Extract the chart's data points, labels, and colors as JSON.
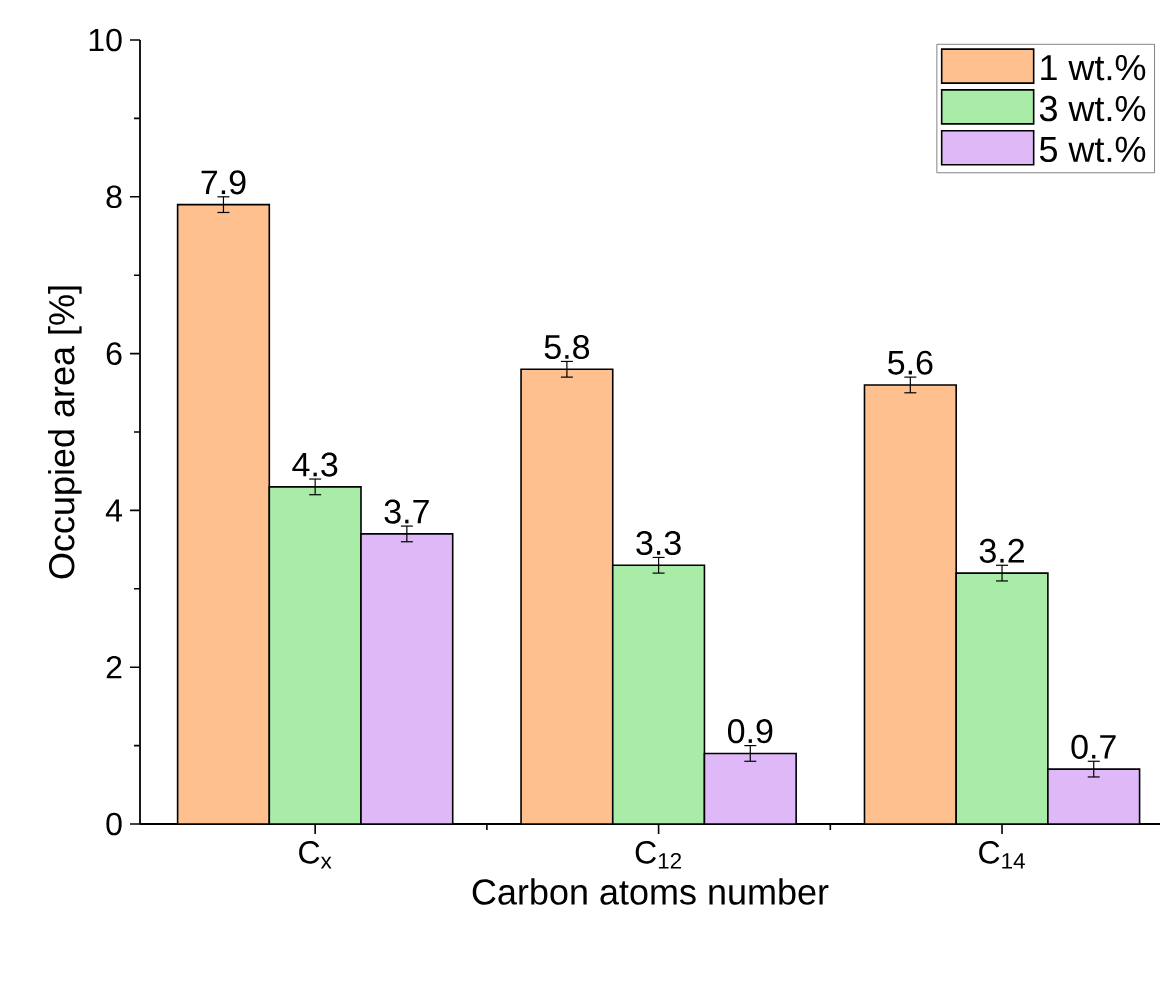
{
  "chart_data": {
    "type": "bar",
    "xlabel": "Carbon atoms number",
    "ylabel": "Occupied area [%]",
    "categories": [
      "C$_{x}$",
      "C$_{12}$",
      "C$_{14}$"
    ],
    "series": [
      {
        "name": "1 wt.%",
        "color": "#fdc08e",
        "values": [
          7.9,
          5.8,
          5.6
        ],
        "errors": [
          0.1,
          0.1,
          0.1
        ]
      },
      {
        "name": "3 wt.%",
        "color": "#a8eca8",
        "values": [
          4.3,
          3.3,
          3.2
        ],
        "errors": [
          0.1,
          0.1,
          0.1
        ]
      },
      {
        "name": "5 wt.%",
        "color": "#dfb8f8",
        "values": [
          3.7,
          0.9,
          0.7
        ],
        "errors": [
          0.1,
          0.1,
          0.1
        ]
      }
    ],
    "ylim": [
      0,
      10
    ],
    "yticks": [
      0,
      2,
      4,
      6,
      8,
      10
    ],
    "legend": "top right",
    "data_labels": true
  }
}
